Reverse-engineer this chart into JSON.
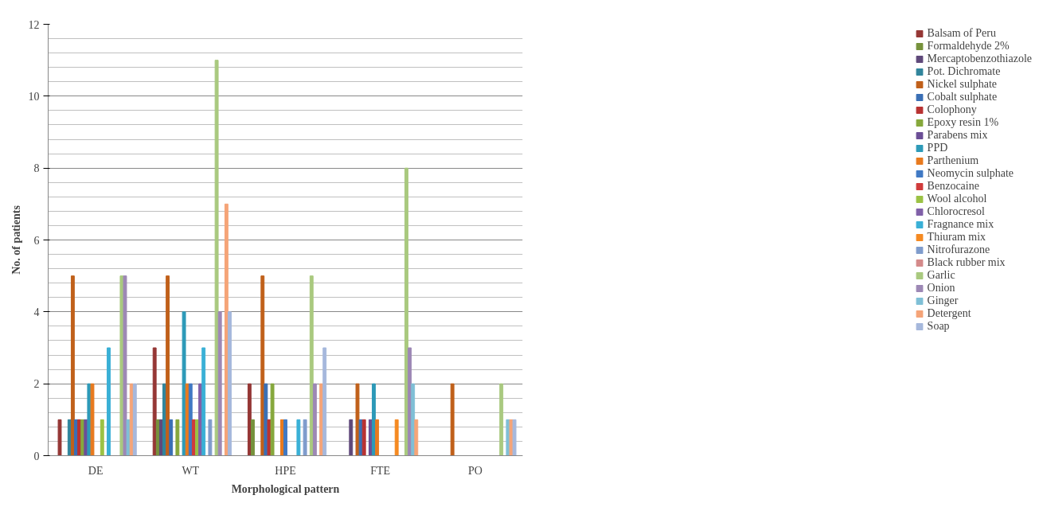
{
  "chart_data": {
    "type": "bar",
    "xlabel": "Morphological pattern",
    "ylabel": "No. of patients",
    "categories": [
      "DE",
      "WT",
      "HPE",
      "FTE",
      "PO"
    ],
    "ylim": [
      0,
      12
    ],
    "yticks": [
      0,
      2,
      4,
      6,
      8,
      10,
      12
    ],
    "grid": "y",
    "legend": "right",
    "series": [
      {
        "color": "#254f82",
        "values": [
          0,
          0,
          0,
          0,
          0
        ]
      },
      {
        "name": "Balsam of Peru",
        "color": "#953735",
        "values": [
          1,
          3,
          2,
          0,
          0
        ]
      },
      {
        "name": "Formaldehyde 2%",
        "color": "#76923c",
        "values": [
          0,
          1,
          1,
          0,
          0
        ]
      },
      {
        "name": "Mercaptobenzothiazole",
        "color": "#5f497a",
        "values": [
          0,
          1,
          0,
          1,
          0
        ]
      },
      {
        "name": "Pot. Dichromate",
        "color": "#31859c",
        "values": [
          1,
          2,
          0,
          0,
          0
        ]
      },
      {
        "name": "Nickel sulphate",
        "color": "#c0601a",
        "values": [
          5,
          5,
          5,
          2,
          2
        ]
      },
      {
        "name": "Cobalt sulphate",
        "color": "#3a6fb5",
        "values": [
          1,
          1,
          2,
          1,
          0
        ]
      },
      {
        "name": "Colophony",
        "color": "#b83232",
        "values": [
          1,
          0,
          1,
          1,
          0
        ]
      },
      {
        "name": "Epoxy resin 1%",
        "color": "#86a83c",
        "values": [
          1,
          1,
          2,
          0,
          0
        ]
      },
      {
        "name": "Parabens mix",
        "color": "#6b4e96",
        "values": [
          1,
          0,
          0,
          1,
          0
        ]
      },
      {
        "name": "PPD",
        "color": "#2d9ab8",
        "values": [
          2,
          4,
          0,
          2,
          0
        ]
      },
      {
        "name": "Parthenium",
        "color": "#e87a1e",
        "values": [
          2,
          2,
          1,
          1,
          0
        ]
      },
      {
        "name": "Neomycin sulphate",
        "color": "#4079c4",
        "values": [
          0,
          2,
          1,
          0,
          0
        ]
      },
      {
        "name": "Benzocaine",
        "color": "#d03b3b",
        "values": [
          0,
          1,
          0,
          0,
          0
        ]
      },
      {
        "name": "Wool alcohol",
        "color": "#9bc244",
        "values": [
          1,
          1,
          0,
          0,
          0
        ]
      },
      {
        "name": "Chlorocresol",
        "color": "#8060a8",
        "values": [
          0,
          2,
          0,
          0,
          0
        ]
      },
      {
        "name": "Fragnance mix",
        "color": "#3ab0d6",
        "values": [
          3,
          3,
          1,
          0,
          0
        ]
      },
      {
        "name": "Thiuram mix",
        "color": "#f58a22",
        "values": [
          0,
          0,
          0,
          1,
          0
        ]
      },
      {
        "name": "Nitrofurazone",
        "color": "#7f9ccc",
        "values": [
          0,
          1,
          1,
          0,
          0
        ]
      },
      {
        "name": "Black rubber mix",
        "color": "#d48a8a",
        "values": [
          0,
          0,
          0,
          0,
          0
        ]
      },
      {
        "name": "Garlic",
        "color": "#a9c97f",
        "values": [
          5,
          11,
          5,
          8,
          2
        ]
      },
      {
        "name": "Onion",
        "color": "#9d88b5",
        "values": [
          5,
          4,
          2,
          3,
          0
        ]
      },
      {
        "name": "Ginger",
        "color": "#7fbfd6",
        "values": [
          1,
          0,
          0,
          2,
          1
        ]
      },
      {
        "name": "Detergent",
        "color": "#f5a478",
        "values": [
          2,
          7,
          2,
          1,
          1
        ]
      },
      {
        "name": "Soap",
        "color": "#a6b8dc",
        "values": [
          2,
          4,
          3,
          0,
          1
        ]
      }
    ]
  }
}
